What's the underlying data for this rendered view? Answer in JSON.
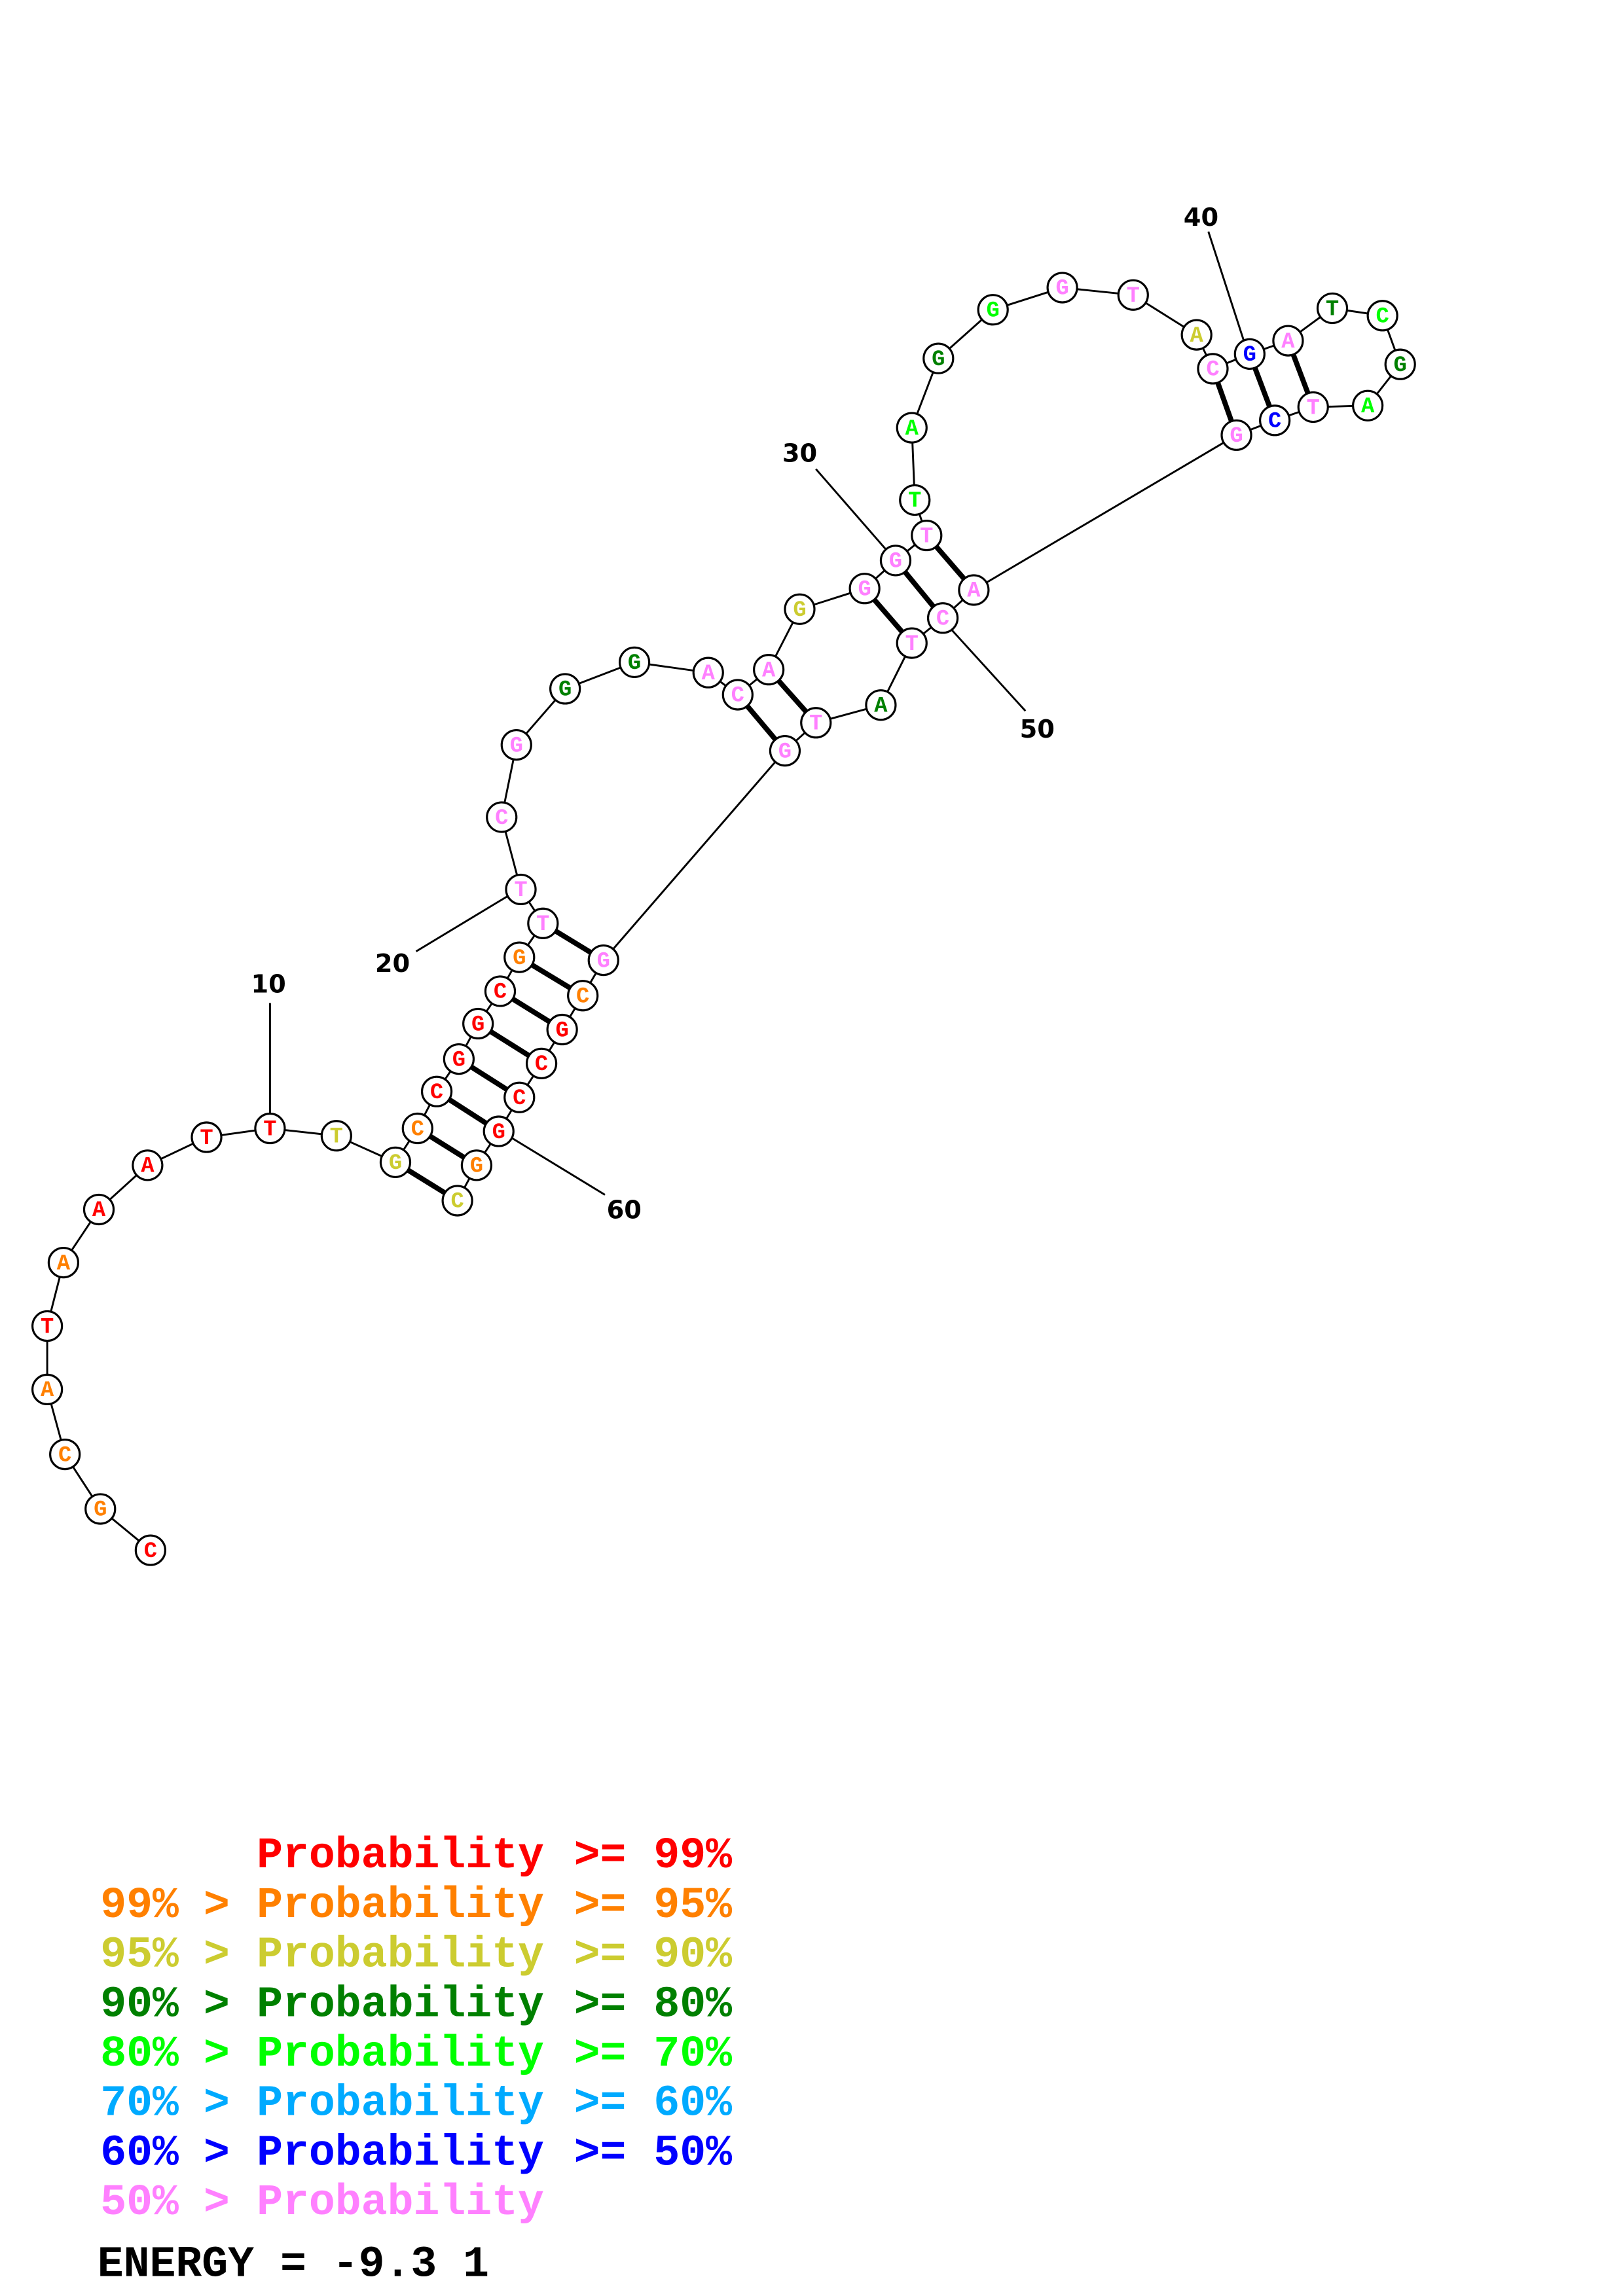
{
  "structure": {
    "sequence": [
      "C",
      "G",
      "C",
      "A",
      "T",
      "A",
      "A",
      "A",
      "T",
      "T",
      "T",
      "G",
      "C",
      "C",
      "G",
      "G",
      "C",
      "G",
      "T",
      "T",
      "C",
      "G",
      "G",
      "G",
      "A",
      "C",
      "A",
      "G",
      "G",
      "G",
      "T",
      "T",
      "A",
      "G",
      "G",
      "G",
      "T",
      "A",
      "C",
      "G",
      "A",
      "T",
      "C",
      "G",
      "A",
      "T",
      "C",
      "G",
      "A",
      "C",
      "T",
      "A",
      "T",
      "G",
      "G",
      "C",
      "G",
      "C",
      "C",
      "G",
      "G",
      "C"
    ],
    "probability_level": [
      0,
      1,
      1,
      1,
      0,
      1,
      0,
      0,
      0,
      0,
      2,
      2,
      1,
      0,
      0,
      0,
      0,
      1,
      7,
      7,
      7,
      7,
      3,
      3,
      7,
      7,
      7,
      2,
      7,
      7,
      7,
      4,
      4,
      3,
      4,
      7,
      7,
      2,
      7,
      6,
      7,
      3,
      4,
      3,
      4,
      7,
      6,
      7,
      7,
      7,
      7,
      3,
      7,
      7,
      7,
      1,
      0,
      0,
      0,
      0,
      1,
      2
    ],
    "pairs": [
      [
        12,
        62
      ],
      [
        13,
        61
      ],
      [
        14,
        60
      ],
      [
        15,
        59
      ],
      [
        16,
        58
      ],
      [
        17,
        57
      ],
      [
        18,
        56
      ],
      [
        19,
        55
      ],
      [
        26,
        54
      ],
      [
        27,
        53
      ],
      [
        29,
        51
      ],
      [
        30,
        50
      ],
      [
        31,
        49
      ],
      [
        39,
        48
      ],
      [
        40,
        47
      ],
      [
        41,
        46
      ]
    ],
    "position_labels": [
      "10",
      "20",
      "30",
      "40",
      "50",
      "60"
    ]
  },
  "legend": {
    "colors": [
      "#ff0000",
      "#ff8000",
      "#cccc30",
      "#008000",
      "#00ff00",
      "#00aaff",
      "#0000ff",
      "#ff80ff"
    ],
    "rows": [
      {
        "left": "",
        "gt": "",
        "word": "Probability",
        "ge": ">=",
        "right": "99%"
      },
      {
        "left": "99%",
        "gt": ">",
        "word": "Probability",
        "ge": ">=",
        "right": "95%"
      },
      {
        "left": "95%",
        "gt": ">",
        "word": "Probability",
        "ge": ">=",
        "right": "90%"
      },
      {
        "left": "90%",
        "gt": ">",
        "word": "Probability",
        "ge": ">=",
        "right": "80%"
      },
      {
        "left": "80%",
        "gt": ">",
        "word": "Probability",
        "ge": ">=",
        "right": "70%"
      },
      {
        "left": "70%",
        "gt": ">",
        "word": "Probability",
        "ge": ">=",
        "right": "60%"
      },
      {
        "left": "60%",
        "gt": ">",
        "word": "Probability",
        "ge": ">=",
        "right": "50%"
      },
      {
        "left": "50%",
        "gt": ">",
        "word": "Probability",
        "ge": "",
        "right": ""
      }
    ],
    "energy_text": "ENERGY = -9.3  1"
  }
}
